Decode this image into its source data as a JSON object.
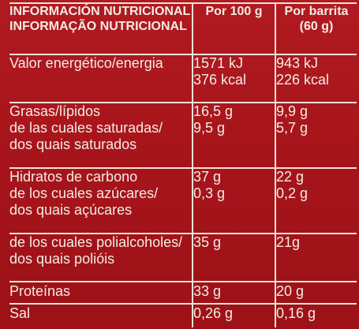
{
  "header": {
    "title_es": "INFORMACIÓN NUTRICIONAL",
    "title_pt": "INFORMAÇÃO NUTRICIONAL",
    "col_100g": "Por 100 g",
    "col_bar_1": "Por barrita",
    "col_bar_2": "(60 g)"
  },
  "rows": {
    "energy": {
      "label": "Valor energético/energia",
      "v100": [
        "1571 kJ",
        "376 kcal"
      ],
      "vbar": [
        "943 kJ",
        "226 kcal"
      ]
    },
    "fat": {
      "label": [
        "Grasas/lípidos",
        "de las cuales saturadas/",
        "dos quais saturados"
      ],
      "v100": [
        "16,5 g",
        "9,5 g"
      ],
      "vbar": [
        "9,9 g",
        "5,7 g"
      ]
    },
    "carbs": {
      "label": [
        "Hidratos de carbono",
        "de los cuales azúcares/",
        "dos quais açúcares"
      ],
      "v100": [
        "37 g",
        "0,3 g"
      ],
      "vbar": [
        "22 g",
        "0,2 g"
      ]
    },
    "polyols": {
      "label": [
        "de los cuales polialcoholes/",
        "dos quais polióis"
      ],
      "v100": "35 g",
      "vbar": "21g"
    },
    "protein": {
      "label": "Proteínas",
      "v100": "33 g",
      "vbar": "20 g"
    },
    "salt": {
      "label": "Sal",
      "v100": "0,26 g",
      "vbar": "0,16 g"
    }
  }
}
